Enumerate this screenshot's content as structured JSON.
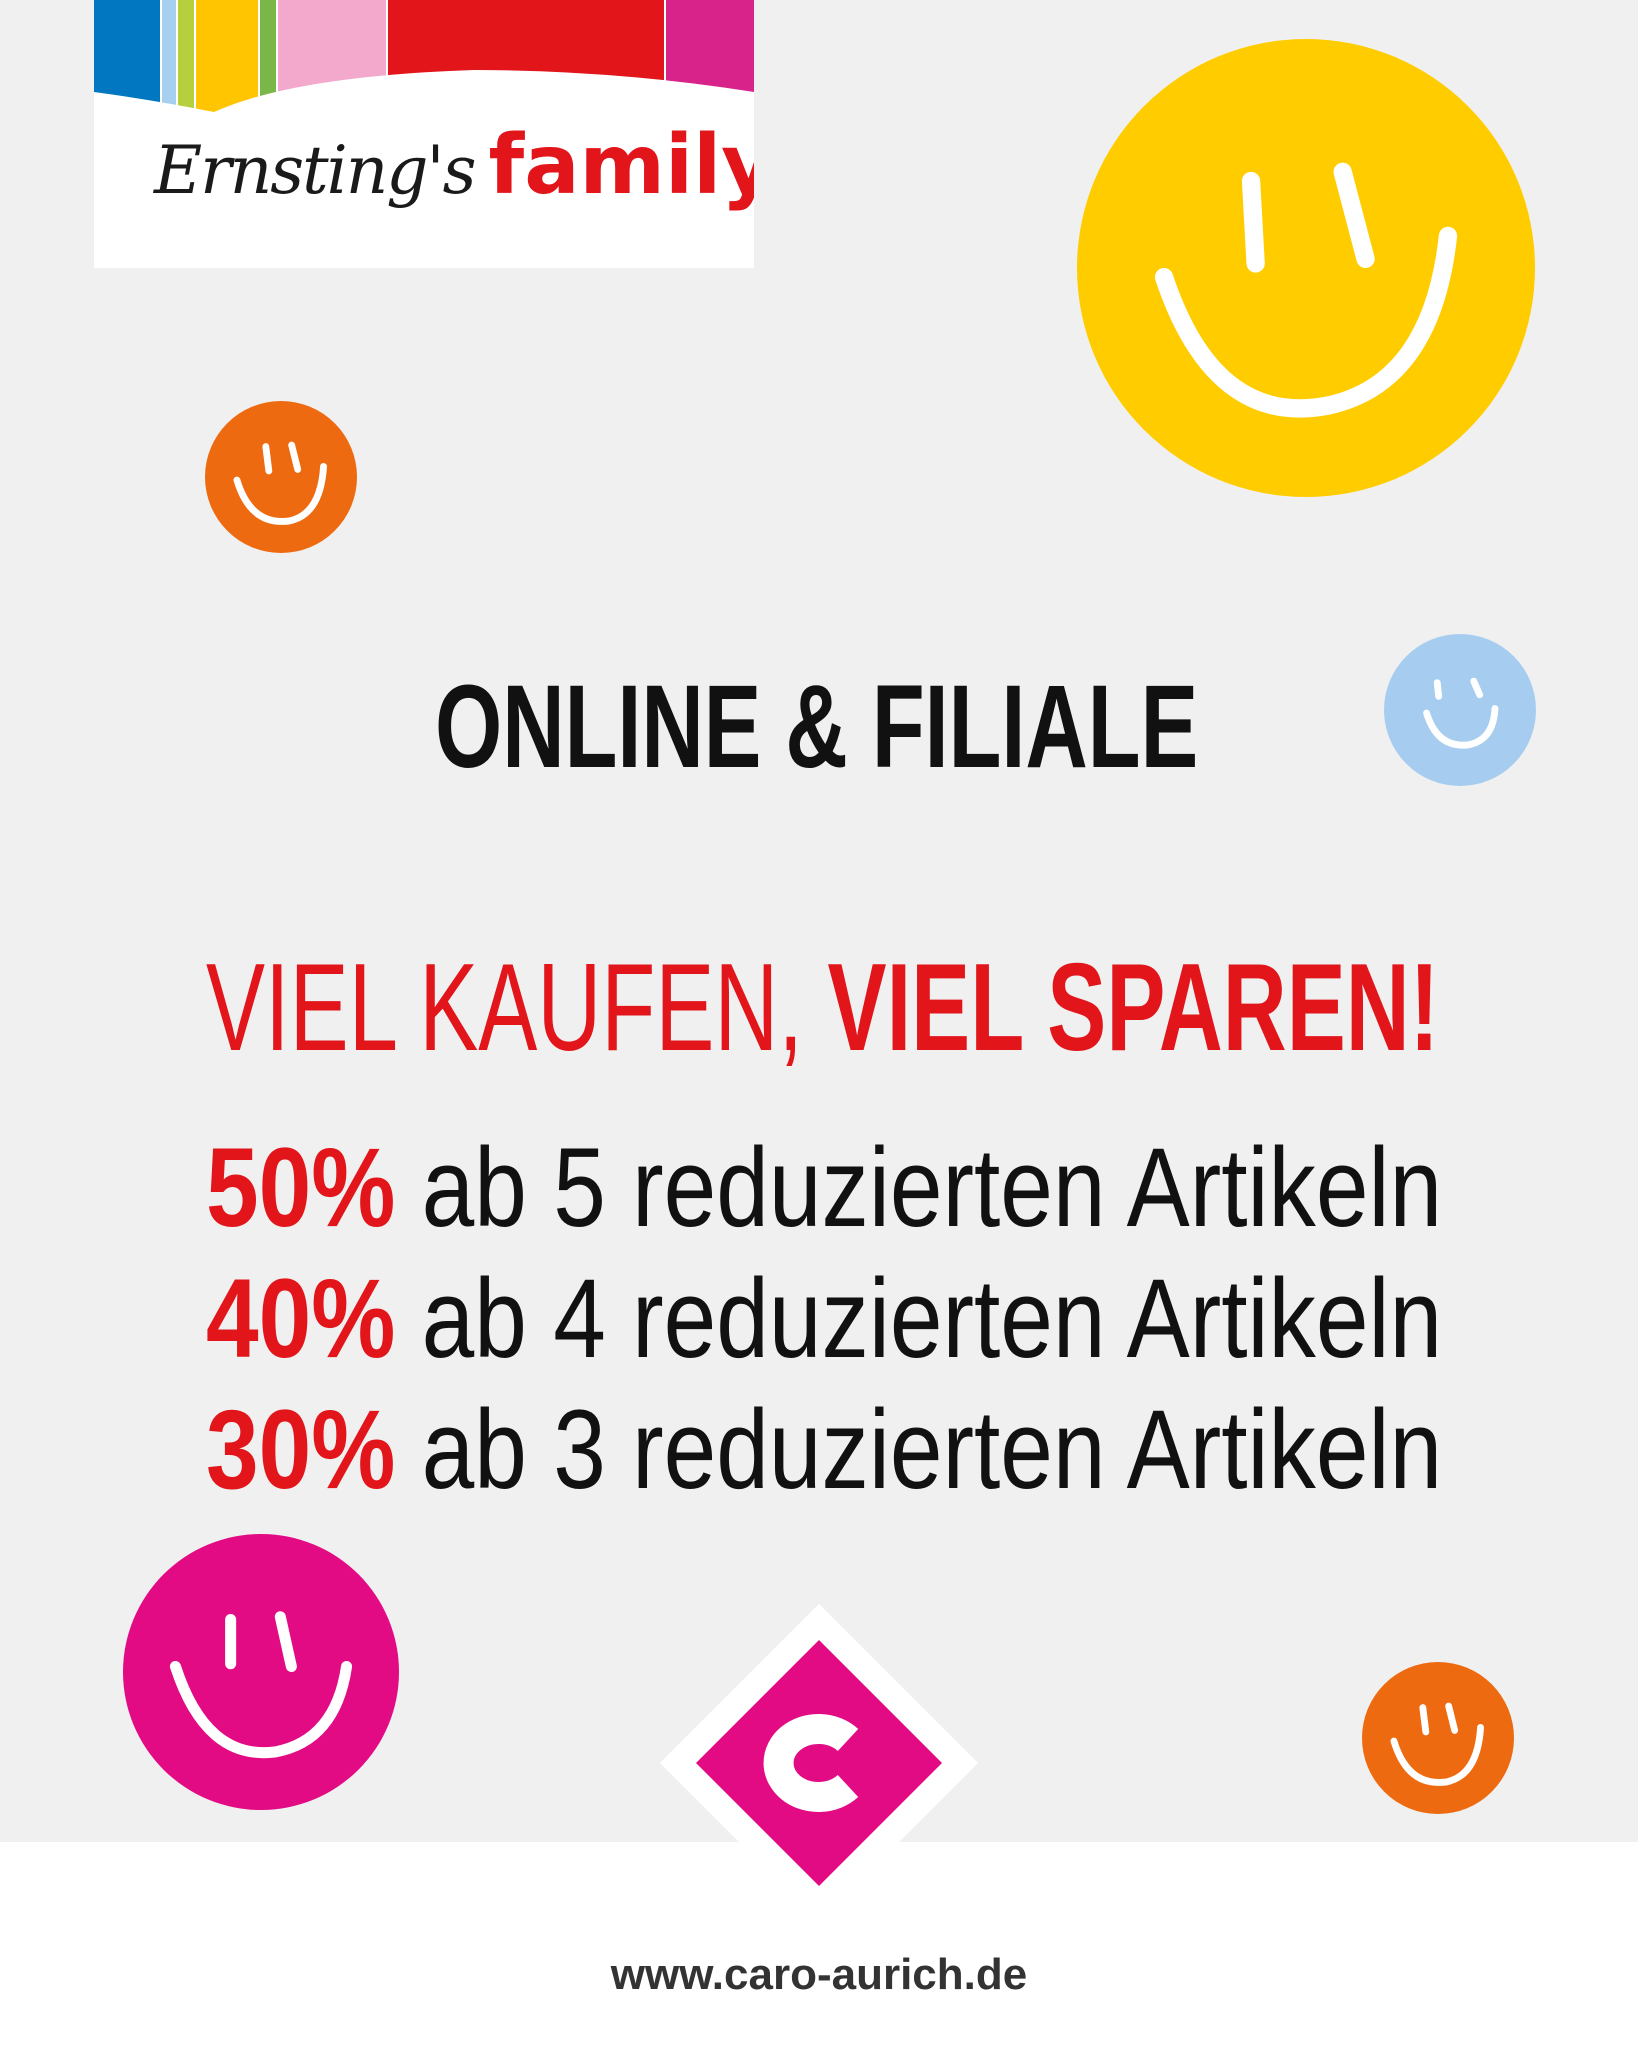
{
  "logo": {
    "script_text": "Ernsting's",
    "brand_text": "family",
    "stripe_colors": [
      "#0077c0",
      "#a6cff0",
      "#b6cf3c",
      "#ffc500",
      "#7ab648",
      "#f3a9cc",
      "#e2151b",
      "#d8238a"
    ]
  },
  "headline": "ONLINE & FILIALE",
  "slogan": {
    "light": "VIEL KAUFEN, ",
    "bold": "VIEL SPAREN!"
  },
  "offers": [
    {
      "percent": "50%",
      "text": " ab 5 reduzierten Artikeln"
    },
    {
      "percent": "40%",
      "text": " ab 4 reduzierten Artikeln"
    },
    {
      "percent": "30%",
      "text": " ab 3 reduzierten Artikeln"
    }
  ],
  "footer": {
    "url": "www.caro-aurich.de"
  },
  "colors": {
    "red": "#e2151b",
    "yellow": "#ffcc00",
    "orange": "#ee6a10",
    "light_blue": "#a6cdf0",
    "pink": "#e20b84",
    "background": "#f0f0f0"
  },
  "icons": [
    "smiley-icon",
    "caro-logo-icon"
  ]
}
